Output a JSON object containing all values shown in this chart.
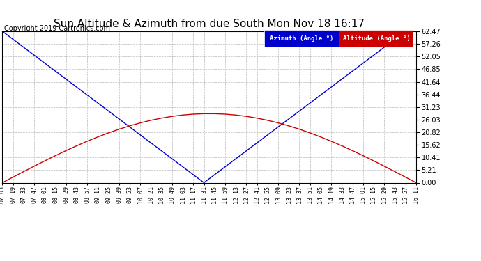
{
  "title": "Sun Altitude & Azimuth from due South Mon Nov 18 16:17",
  "copyright": "Copyright 2019 Cartronics.com",
  "yticks": [
    0.0,
    5.21,
    10.41,
    15.62,
    20.82,
    26.03,
    31.23,
    36.44,
    41.64,
    46.85,
    52.05,
    57.26,
    62.47
  ],
  "ymax": 62.47,
  "ymin": 0.0,
  "x_labels": [
    "07:03",
    "07:19",
    "07:33",
    "07:47",
    "08:01",
    "08:15",
    "08:29",
    "08:43",
    "08:57",
    "09:11",
    "09:25",
    "09:39",
    "09:53",
    "10:07",
    "10:21",
    "10:35",
    "10:49",
    "11:03",
    "11:17",
    "11:31",
    "11:45",
    "11:59",
    "12:13",
    "12:27",
    "12:41",
    "12:55",
    "13:09",
    "13:23",
    "13:37",
    "13:51",
    "14:05",
    "14:19",
    "14:33",
    "14:47",
    "15:01",
    "15:15",
    "15:29",
    "15:43",
    "15:57",
    "16:11"
  ],
  "azimuth_color": "#0000cc",
  "altitude_color": "#cc0000",
  "legend_azimuth_bg": "#0000cc",
  "legend_altitude_bg": "#cc0000",
  "background_color": "#ffffff",
  "plot_bg": "#ffffff",
  "grid_color": "#bbbbbb",
  "title_fontsize": 11,
  "copyright_fontsize": 7,
  "tick_fontsize": 6,
  "ytick_fontsize": 7,
  "linewidth": 1.0,
  "azimuth_mid_index": 19,
  "altitude_peak": 28.5,
  "altitude_peak_index": 19
}
